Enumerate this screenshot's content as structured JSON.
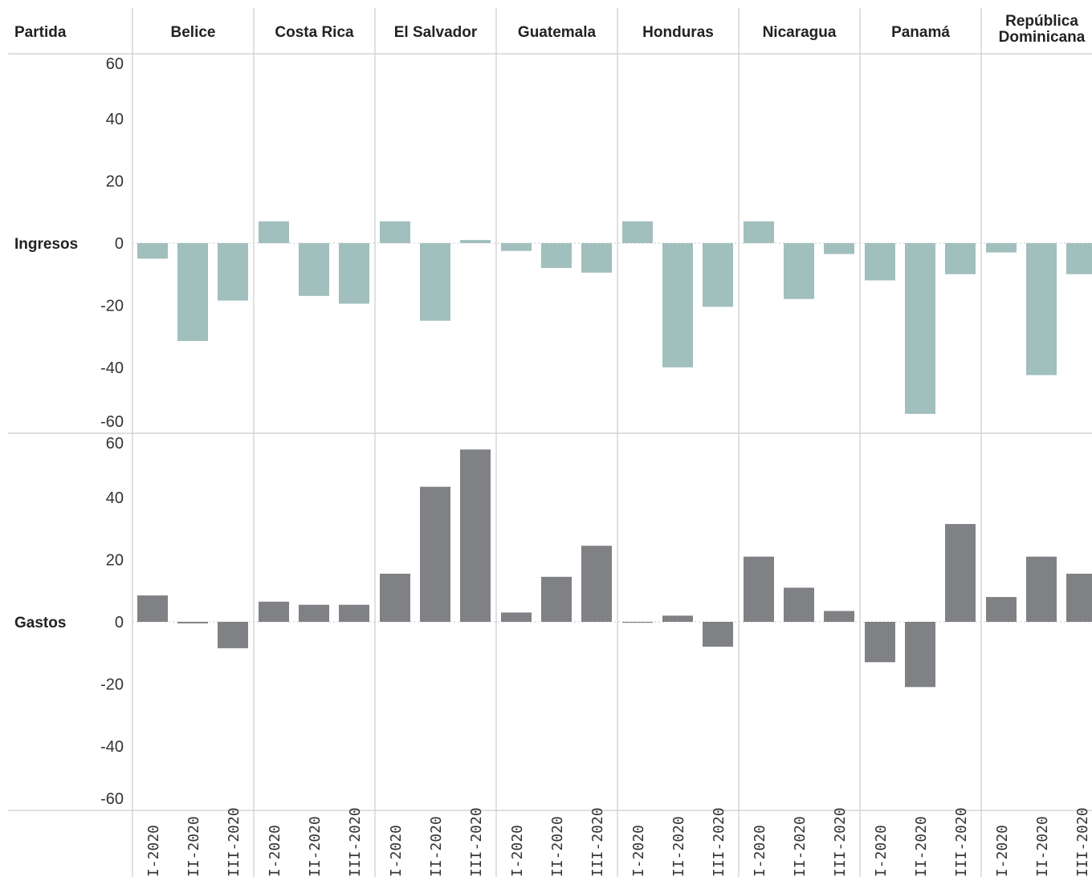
{
  "chart_data": {
    "type": "bar",
    "row_header": "Partida",
    "countries": [
      "Belice",
      "Costa Rica",
      "El Salvador",
      "Guatemala",
      "Honduras",
      "Nicaragua",
      "Panamá",
      "República Dominicana"
    ],
    "country_header_lines": [
      [
        "Belice"
      ],
      [
        "Costa Rica"
      ],
      [
        "El Salvador"
      ],
      [
        "Guatemala"
      ],
      [
        "Honduras"
      ],
      [
        "Nicaragua"
      ],
      [
        "Panamá"
      ],
      [
        "República",
        "Dominicana"
      ]
    ],
    "periods": [
      "I-2020",
      "II-2020",
      "III-2020"
    ],
    "ylim": [
      -60,
      60
    ],
    "yticks": [
      60,
      40,
      20,
      0,
      -20,
      -40,
      -60
    ],
    "grid": false,
    "series": [
      {
        "name": "Ingresos",
        "color": "#a0bfbd",
        "values": [
          [
            -5,
            -31.5,
            -18.5
          ],
          [
            7,
            -17,
            -19.5
          ],
          [
            7,
            -25,
            1
          ],
          [
            -2.5,
            -8,
            -9.5
          ],
          [
            7,
            -40,
            -20.5
          ],
          [
            7,
            -18,
            -3.5
          ],
          [
            -12,
            -55,
            -10
          ],
          [
            -3,
            -42.5,
            -10
          ]
        ]
      },
      {
        "name": "Gastos",
        "color": "#808184",
        "values": [
          [
            8.5,
            -0.5,
            -8.5
          ],
          [
            6.5,
            5.5,
            5.5
          ],
          [
            15.5,
            43.5,
            55.5
          ],
          [
            3,
            14.5,
            24.5
          ],
          [
            -0.3,
            2,
            -8
          ],
          [
            21,
            11,
            3.5
          ],
          [
            -13,
            -21,
            31.5
          ],
          [
            8,
            21,
            15.5
          ]
        ]
      }
    ]
  }
}
